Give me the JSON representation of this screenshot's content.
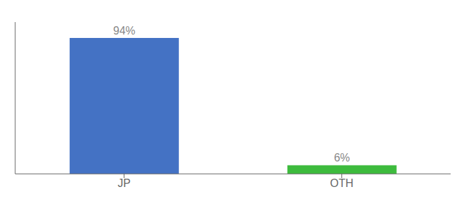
{
  "chart_data": {
    "type": "bar",
    "categories": [
      "JP",
      "OTH"
    ],
    "values": [
      94,
      6
    ],
    "value_labels": [
      "94%",
      "6%"
    ],
    "data_labels": true,
    "colors": [
      "#4472c4",
      "#3dbb3d"
    ],
    "ylim": [
      0,
      105
    ],
    "tick_labels": "x"
  }
}
